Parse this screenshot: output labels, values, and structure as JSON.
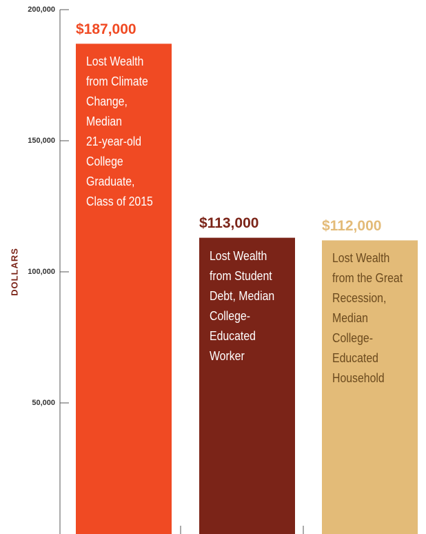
{
  "chart_data": {
    "type": "bar",
    "y_label": "DOLLARS",
    "categories": [
      "Lost Wealth\nfrom Climate\nChange,\nMedian\n21-year-old\nCollege\nGraduate,\nClass of 2015",
      "Lost Wealth\nfrom Student\nDebt, Median\nCollege-\nEducated\nWorker",
      "Lost Wealth\nfrom the Great\nRecession,\nMedian\nCollege-\nEducated\nHousehold"
    ],
    "values": [
      187000,
      113000,
      112000
    ],
    "value_labels": [
      "$187,000",
      "$113,000",
      "$112,000"
    ],
    "colors": [
      "#f04a23",
      "#7b2418",
      "#e3bb78"
    ],
    "label_colors": [
      "#ffffff",
      "#ffffff",
      "#6b4a1e"
    ],
    "ylim": [
      0,
      200000
    ],
    "yticks": [
      {
        "value": 50000,
        "label": "50,000"
      },
      {
        "value": 100000,
        "label": "100,000"
      },
      {
        "value": 150000,
        "label": "150,000"
      },
      {
        "value": 200000,
        "label": "200,000"
      }
    ],
    "grid": false
  }
}
